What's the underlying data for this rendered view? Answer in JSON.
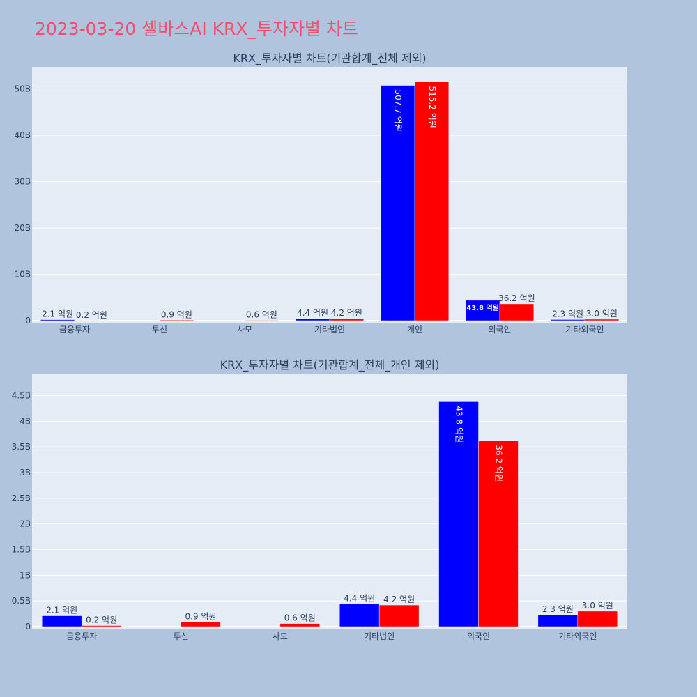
{
  "title": "2023-03-20 셀바스AI KRX_투자자별 차트",
  "colors": {
    "series1": "#0000ff",
    "series2": "#ff0000",
    "plot_bg": "#e5ecf6",
    "page_bg": "#b0c4de",
    "title": "#f0506e"
  },
  "chart_data": [
    {
      "type": "bar",
      "title": "KRX_투자자별 차트(기관합계_전체 제외)",
      "categories": [
        "금융투자",
        "투신",
        "사모",
        "기타법인",
        "개인",
        "외국인",
        "기타외국인"
      ],
      "ylim": [
        0,
        55
      ],
      "yticks": [
        0,
        10,
        20,
        30,
        40,
        50
      ],
      "ytick_labels": [
        "0",
        "10B",
        "20B",
        "30B",
        "40B",
        "50B"
      ],
      "grid": true,
      "series": [
        {
          "values": [
            0.21,
            0,
            0,
            0.44,
            50.77,
            4.38,
            0.23
          ],
          "labels": [
            "2.1 억원",
            "",
            "",
            "4.4 억원",
            "507.7 억원",
            "43.8 억원",
            "2.3 억원"
          ]
        },
        {
          "values": [
            0.02,
            0.09,
            0.06,
            0.42,
            51.52,
            3.62,
            0.3
          ],
          "labels": [
            "0.2 억원",
            "0.9 억원",
            "0.6 억원",
            "4.2 억원",
            "515.2 억원",
            "36.2 억원",
            "3.0 억원"
          ]
        }
      ]
    },
    {
      "type": "bar",
      "title": "KRX_투자자별 차트(기관합계_전체_개인 제외)",
      "categories": [
        "금융투자",
        "투신",
        "사모",
        "기타법인",
        "외국인",
        "기타외국인"
      ],
      "ylim": [
        0,
        4.65
      ],
      "yticks": [
        0,
        0.5,
        1,
        1.5,
        2,
        2.5,
        3,
        3.5,
        4,
        4.5
      ],
      "ytick_labels": [
        "0",
        "0.5B",
        "1B",
        "1.5B",
        "2B",
        "2.5B",
        "3B",
        "3.5B",
        "4B",
        "4.5B"
      ],
      "grid": true,
      "series": [
        {
          "values": [
            0.21,
            0,
            0,
            0.44,
            4.38,
            0.23
          ],
          "labels": [
            "2.1 억원",
            "",
            "",
            "4.4 억원",
            "43.8 억원",
            "2.3 억원"
          ]
        },
        {
          "values": [
            0.02,
            0.09,
            0.06,
            0.42,
            3.62,
            0.3
          ],
          "labels": [
            "0.2 억원",
            "0.9 억원",
            "0.6 억원",
            "4.2 억원",
            "36.2 억원",
            "3.0 억원"
          ]
        }
      ]
    }
  ]
}
